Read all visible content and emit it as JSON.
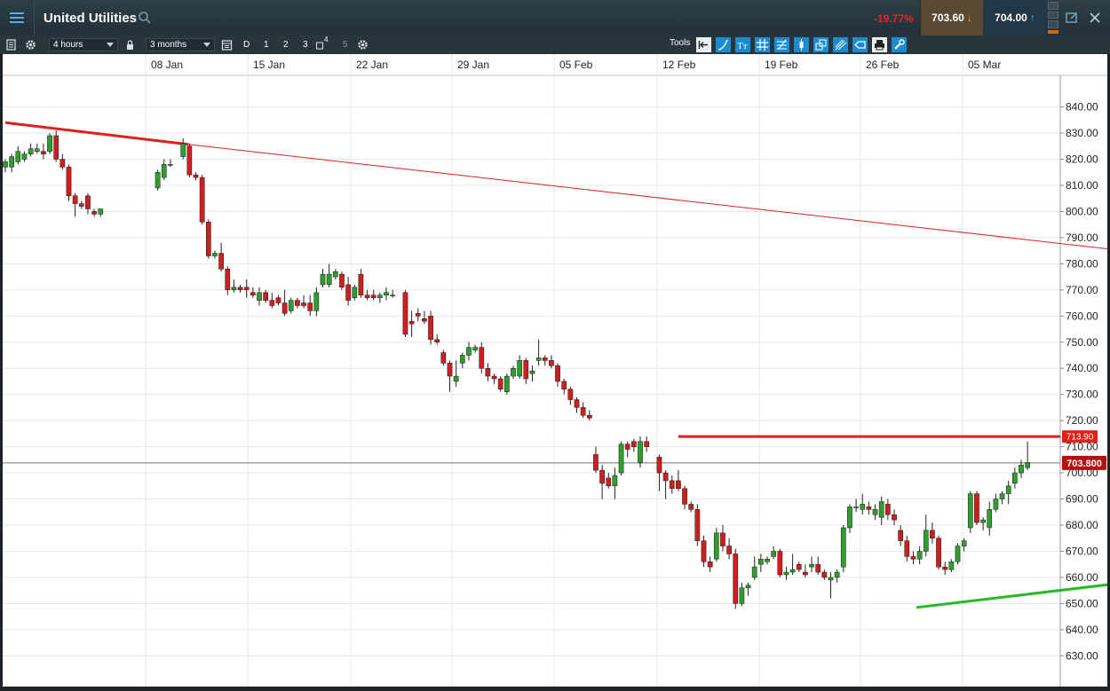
{
  "header": {
    "title": "United Utilities",
    "change": "-19.77%",
    "bid": "703.60",
    "ask": "704.00",
    "change_color": "#e02828"
  },
  "toolbar": {
    "interval": "4 hours",
    "range": "3 months",
    "period_buttons": [
      "D",
      "1",
      "2",
      "3",
      "4",
      "5"
    ],
    "tools_label": "Tools"
  },
  "icons": [
    "menu-icon",
    "search-icon",
    "settings-icon",
    "lock-icon",
    "calendar-icon",
    "popout-icon",
    "close-icon",
    "print-icon"
  ],
  "chart_data": {
    "type": "candlestick",
    "instrument": "United Utilities",
    "x_ticks": [
      "08 Jan",
      "15 Jan",
      "22 Jan",
      "29 Jan",
      "05 Feb",
      "12 Feb",
      "19 Feb",
      "26 Feb",
      "05 Mar"
    ],
    "y_ticks": [
      "840.00",
      "830.00",
      "820.00",
      "810.00",
      "800.00",
      "790.00",
      "780.00",
      "770.00",
      "760.00",
      "750.00",
      "740.00",
      "730.00",
      "720.00",
      "710.00",
      "700.00",
      "690.00",
      "680.00",
      "670.00",
      "660.00",
      "650.00",
      "640.00",
      "630.00"
    ],
    "ylim": [
      624,
      848
    ],
    "grid": true,
    "price_labels": [
      {
        "text": "713.90",
        "value": 713.9,
        "color": "#e0201d"
      },
      {
        "text": "703.800",
        "value": 703.8,
        "color": "#b81010"
      }
    ],
    "horizontal_lines": [
      {
        "value": 713.9,
        "from_x": 106,
        "color": "#e0201d",
        "style": "bold"
      },
      {
        "value": 703.8,
        "color": "#777777",
        "style": "thin"
      }
    ],
    "trendlines": [
      {
        "points": [
          [
            0,
            834
          ],
          [
            28.8,
            825.7
          ]
        ],
        "color": "#e0201d",
        "style": "bold"
      },
      {
        "points": [
          [
            28.8,
            825.7
          ],
          [
            214.5,
            774.4
          ]
        ],
        "color": "#e0201d",
        "style": "thin"
      },
      {
        "points": [
          [
            143.5,
            648.5
          ],
          [
            190.5,
            662.1
          ]
        ],
        "color": "#22bb22",
        "style": "bold"
      },
      {
        "points": [
          [
            190.5,
            662.1
          ],
          [
            214.5,
            668.3
          ]
        ],
        "color": "#22bb22",
        "style": "thin"
      }
    ],
    "up_color": "#2f9e2f",
    "down_color": "#cc1f1f",
    "candles": [
      {
        "x": 0,
        "o": 817,
        "h": 820,
        "l": 815,
        "c": 819
      },
      {
        "x": 1,
        "o": 817,
        "h": 822,
        "l": 815,
        "c": 821
      },
      {
        "x": 2,
        "o": 819,
        "h": 825,
        "l": 818,
        "c": 823
      },
      {
        "x": 3,
        "o": 820,
        "h": 823,
        "l": 819,
        "c": 822
      },
      {
        "x": 4,
        "o": 822,
        "h": 826,
        "l": 821,
        "c": 824
      },
      {
        "x": 5,
        "o": 823,
        "h": 826,
        "l": 822,
        "c": 824
      },
      {
        "x": 6,
        "o": 823,
        "h": 826,
        "l": 820,
        "c": 822
      },
      {
        "x": 7,
        "o": 823,
        "h": 830,
        "l": 822,
        "c": 829
      },
      {
        "x": 8,
        "o": 829,
        "h": 831,
        "l": 819,
        "c": 820
      },
      {
        "x": 9,
        "o": 820,
        "h": 822,
        "l": 816,
        "c": 817
      },
      {
        "x": 10,
        "o": 817,
        "h": 818,
        "l": 804,
        "c": 806
      },
      {
        "x": 11,
        "o": 806,
        "h": 807,
        "l": 798,
        "c": 803
      },
      {
        "x": 12,
        "o": 803,
        "h": 804,
        "l": 801,
        "c": 802
      },
      {
        "x": 13,
        "o": 806,
        "h": 807,
        "l": 799,
        "c": 801
      },
      {
        "x": 14,
        "o": 800,
        "h": 801,
        "l": 798,
        "c": 799
      },
      {
        "x": 15,
        "o": 799,
        "h": 801,
        "l": 798,
        "c": 801
      },
      {
        "x": 24,
        "o": 809,
        "h": 816,
        "l": 808,
        "c": 815
      },
      {
        "x": 25,
        "o": 813,
        "h": 820,
        "l": 812,
        "c": 818
      },
      {
        "x": 26,
        "o": 818,
        "h": 820,
        "l": 817,
        "c": 818
      },
      {
        "x": 28,
        "o": 821,
        "h": 828,
        "l": 820,
        "c": 826
      },
      {
        "x": 29,
        "o": 825,
        "h": 826,
        "l": 813,
        "c": 814
      },
      {
        "x": 30,
        "o": 814,
        "h": 815,
        "l": 812,
        "c": 813
      },
      {
        "x": 31,
        "o": 813,
        "h": 814,
        "l": 795,
        "c": 796
      },
      {
        "x": 32,
        "o": 796,
        "h": 797,
        "l": 782,
        "c": 783
      },
      {
        "x": 33,
        "o": 783,
        "h": 785,
        "l": 782,
        "c": 784
      },
      {
        "x": 34,
        "o": 784,
        "h": 788,
        "l": 777,
        "c": 778
      },
      {
        "x": 35,
        "o": 778,
        "h": 779,
        "l": 768,
        "c": 770
      },
      {
        "x": 36,
        "o": 770,
        "h": 774,
        "l": 769,
        "c": 771
      },
      {
        "x": 37,
        "o": 771,
        "h": 772,
        "l": 769,
        "c": 770
      },
      {
        "x": 38,
        "o": 771,
        "h": 774,
        "l": 767,
        "c": 770
      },
      {
        "x": 39,
        "o": 769,
        "h": 771,
        "l": 767,
        "c": 768
      },
      {
        "x": 40,
        "o": 766,
        "h": 771,
        "l": 764,
        "c": 769
      },
      {
        "x": 41,
        "o": 769,
        "h": 770,
        "l": 765,
        "c": 766
      },
      {
        "x": 42,
        "o": 766,
        "h": 769,
        "l": 763,
        "c": 764
      },
      {
        "x": 43,
        "o": 767,
        "h": 768,
        "l": 764,
        "c": 765
      },
      {
        "x": 44,
        "o": 765,
        "h": 770,
        "l": 760,
        "c": 761
      },
      {
        "x": 45,
        "o": 762,
        "h": 767,
        "l": 761,
        "c": 766
      },
      {
        "x": 46,
        "o": 766,
        "h": 767,
        "l": 763,
        "c": 764
      },
      {
        "x": 47,
        "o": 765,
        "h": 768,
        "l": 763,
        "c": 764
      },
      {
        "x": 48,
        "o": 765,
        "h": 768,
        "l": 760,
        "c": 762
      },
      {
        "x": 49,
        "o": 762,
        "h": 771,
        "l": 760,
        "c": 769
      },
      {
        "x": 50,
        "o": 772,
        "h": 778,
        "l": 771,
        "c": 776
      },
      {
        "x": 51,
        "o": 772,
        "h": 780,
        "l": 771,
        "c": 776
      },
      {
        "x": 52,
        "o": 775,
        "h": 778,
        "l": 774,
        "c": 777
      },
      {
        "x": 53,
        "o": 776,
        "h": 777,
        "l": 770,
        "c": 771
      },
      {
        "x": 54,
        "o": 772,
        "h": 775,
        "l": 764,
        "c": 766
      },
      {
        "x": 55,
        "o": 767,
        "h": 772,
        "l": 766,
        "c": 771
      },
      {
        "x": 56,
        "o": 776,
        "h": 778,
        "l": 767,
        "c": 768
      },
      {
        "x": 57,
        "o": 768,
        "h": 770,
        "l": 766,
        "c": 767
      },
      {
        "x": 58,
        "o": 768,
        "h": 770,
        "l": 766,
        "c": 767
      },
      {
        "x": 59,
        "o": 767,
        "h": 769,
        "l": 765,
        "c": 768
      },
      {
        "x": 60,
        "o": 768,
        "h": 771,
        "l": 766,
        "c": 769
      },
      {
        "x": 61,
        "o": 768,
        "h": 770,
        "l": 767,
        "c": 768
      },
      {
        "x": 63,
        "o": 769,
        "h": 770,
        "l": 752,
        "c": 753
      },
      {
        "x": 64,
        "o": 758,
        "h": 762,
        "l": 752,
        "c": 757
      },
      {
        "x": 65,
        "o": 761,
        "h": 763,
        "l": 758,
        "c": 760
      },
      {
        "x": 66,
        "o": 759,
        "h": 762,
        "l": 757,
        "c": 758
      },
      {
        "x": 67,
        "o": 760,
        "h": 762,
        "l": 749,
        "c": 751
      },
      {
        "x": 68,
        "o": 751,
        "h": 753,
        "l": 749,
        "c": 750
      },
      {
        "x": 69,
        "o": 746,
        "h": 747,
        "l": 741,
        "c": 742
      },
      {
        "x": 70,
        "o": 742,
        "h": 743,
        "l": 731,
        "c": 737
      },
      {
        "x": 71,
        "o": 735,
        "h": 743,
        "l": 733,
        "c": 737
      },
      {
        "x": 72,
        "o": 742,
        "h": 746,
        "l": 740,
        "c": 745
      },
      {
        "x": 73,
        "o": 745,
        "h": 750,
        "l": 743,
        "c": 748
      },
      {
        "x": 74,
        "o": 747,
        "h": 749,
        "l": 746,
        "c": 748
      },
      {
        "x": 75,
        "o": 748,
        "h": 750,
        "l": 738,
        "c": 740
      },
      {
        "x": 76,
        "o": 740,
        "h": 742,
        "l": 735,
        "c": 737
      },
      {
        "x": 77,
        "o": 737,
        "h": 738,
        "l": 734,
        "c": 736
      },
      {
        "x": 78,
        "o": 736,
        "h": 737,
        "l": 731,
        "c": 732
      },
      {
        "x": 79,
        "o": 731,
        "h": 738,
        "l": 730,
        "c": 737
      },
      {
        "x": 80,
        "o": 737,
        "h": 741,
        "l": 736,
        "c": 740
      },
      {
        "x": 81,
        "o": 737,
        "h": 745,
        "l": 736,
        "c": 743
      },
      {
        "x": 82,
        "o": 743,
        "h": 744,
        "l": 734,
        "c": 736
      },
      {
        "x": 83,
        "o": 738,
        "h": 741,
        "l": 735,
        "c": 739
      },
      {
        "x": 84,
        "o": 743,
        "h": 751,
        "l": 741,
        "c": 744
      },
      {
        "x": 85,
        "o": 744,
        "h": 745,
        "l": 741,
        "c": 743
      },
      {
        "x": 86,
        "o": 743,
        "h": 745,
        "l": 740,
        "c": 741
      },
      {
        "x": 87,
        "o": 741,
        "h": 742,
        "l": 733,
        "c": 735
      },
      {
        "x": 88,
        "o": 735,
        "h": 736,
        "l": 730,
        "c": 732
      },
      {
        "x": 89,
        "o": 732,
        "h": 733,
        "l": 726,
        "c": 728
      },
      {
        "x": 90,
        "o": 728,
        "h": 729,
        "l": 723,
        "c": 725
      },
      {
        "x": 91,
        "o": 725,
        "h": 727,
        "l": 721,
        "c": 722
      },
      {
        "x": 92,
        "o": 722,
        "h": 724,
        "l": 720,
        "c": 721
      },
      {
        "x": 93,
        "o": 707,
        "h": 710,
        "l": 700,
        "c": 701
      },
      {
        "x": 94,
        "o": 701,
        "h": 703,
        "l": 690,
        "c": 696
      },
      {
        "x": 95,
        "o": 698,
        "h": 700,
        "l": 694,
        "c": 695
      },
      {
        "x": 96,
        "o": 695,
        "h": 702,
        "l": 690,
        "c": 699
      },
      {
        "x": 97,
        "o": 700,
        "h": 712,
        "l": 699,
        "c": 711
      },
      {
        "x": 98,
        "o": 711,
        "h": 712,
        "l": 706,
        "c": 709
      },
      {
        "x": 99,
        "o": 712,
        "h": 713,
        "l": 708,
        "c": 710
      },
      {
        "x": 100,
        "o": 704,
        "h": 714,
        "l": 702,
        "c": 712
      },
      {
        "x": 101,
        "o": 712,
        "h": 714,
        "l": 708,
        "c": 710
      },
      {
        "x": 103,
        "o": 706,
        "h": 707,
        "l": 693,
        "c": 700
      },
      {
        "x": 104,
        "o": 700,
        "h": 701,
        "l": 690,
        "c": 697
      },
      {
        "x": 105,
        "o": 697,
        "h": 699,
        "l": 692,
        "c": 694
      },
      {
        "x": 106,
        "o": 697,
        "h": 701,
        "l": 693,
        "c": 694
      },
      {
        "x": 107,
        "o": 694,
        "h": 695,
        "l": 686,
        "c": 688
      },
      {
        "x": 108,
        "o": 688,
        "h": 689,
        "l": 685,
        "c": 686
      },
      {
        "x": 109,
        "o": 686,
        "h": 688,
        "l": 672,
        "c": 674
      },
      {
        "x": 110,
        "o": 674,
        "h": 676,
        "l": 664,
        "c": 666
      },
      {
        "x": 111,
        "o": 666,
        "h": 668,
        "l": 662,
        "c": 664
      },
      {
        "x": 112,
        "o": 667,
        "h": 679,
        "l": 666,
        "c": 677
      },
      {
        "x": 113,
        "o": 677,
        "h": 680,
        "l": 670,
        "c": 672
      },
      {
        "x": 114,
        "o": 672,
        "h": 675,
        "l": 667,
        "c": 669
      },
      {
        "x": 115,
        "o": 669,
        "h": 671,
        "l": 648,
        "c": 650
      },
      {
        "x": 116,
        "o": 650,
        "h": 658,
        "l": 649,
        "c": 656
      },
      {
        "x": 117,
        "o": 656,
        "h": 658,
        "l": 653,
        "c": 657
      },
      {
        "x": 118,
        "o": 660,
        "h": 668,
        "l": 659,
        "c": 664
      },
      {
        "x": 119,
        "o": 665,
        "h": 669,
        "l": 662,
        "c": 667
      },
      {
        "x": 120,
        "o": 666,
        "h": 668,
        "l": 665,
        "c": 667
      },
      {
        "x": 121,
        "o": 668,
        "h": 672,
        "l": 667,
        "c": 670
      },
      {
        "x": 122,
        "o": 670,
        "h": 671,
        "l": 660,
        "c": 661
      },
      {
        "x": 123,
        "o": 661,
        "h": 664,
        "l": 659,
        "c": 662
      },
      {
        "x": 124,
        "o": 662,
        "h": 669,
        "l": 661,
        "c": 663
      },
      {
        "x": 125,
        "o": 665,
        "h": 666,
        "l": 662,
        "c": 663
      },
      {
        "x": 126,
        "o": 662,
        "h": 665,
        "l": 660,
        "c": 661
      },
      {
        "x": 127,
        "o": 664,
        "h": 668,
        "l": 662,
        "c": 665
      },
      {
        "x": 128,
        "o": 665,
        "h": 668,
        "l": 661,
        "c": 662
      },
      {
        "x": 129,
        "o": 662,
        "h": 663,
        "l": 659,
        "c": 660
      },
      {
        "x": 130,
        "o": 659,
        "h": 662,
        "l": 652,
        "c": 660
      },
      {
        "x": 131,
        "o": 660,
        "h": 663,
        "l": 658,
        "c": 662
      },
      {
        "x": 132,
        "o": 664,
        "h": 680,
        "l": 662,
        "c": 679
      },
      {
        "x": 133,
        "o": 679,
        "h": 688,
        "l": 677,
        "c": 687
      },
      {
        "x": 134,
        "o": 687,
        "h": 690,
        "l": 685,
        "c": 687
      },
      {
        "x": 135,
        "o": 686,
        "h": 692,
        "l": 684,
        "c": 688
      },
      {
        "x": 136,
        "o": 687,
        "h": 689,
        "l": 684,
        "c": 686
      },
      {
        "x": 137,
        "o": 684,
        "h": 688,
        "l": 682,
        "c": 686
      },
      {
        "x": 138,
        "o": 683,
        "h": 691,
        "l": 680,
        "c": 689
      },
      {
        "x": 139,
        "o": 688,
        "h": 690,
        "l": 682,
        "c": 684
      },
      {
        "x": 140,
        "o": 684,
        "h": 686,
        "l": 680,
        "c": 682
      },
      {
        "x": 141,
        "o": 678,
        "h": 680,
        "l": 672,
        "c": 674
      },
      {
        "x": 142,
        "o": 674,
        "h": 676,
        "l": 666,
        "c": 668
      },
      {
        "x": 143,
        "o": 668,
        "h": 670,
        "l": 665,
        "c": 667
      },
      {
        "x": 144,
        "o": 667,
        "h": 672,
        "l": 665,
        "c": 670
      },
      {
        "x": 145,
        "o": 670,
        "h": 684,
        "l": 668,
        "c": 678
      },
      {
        "x": 146,
        "o": 678,
        "h": 681,
        "l": 673,
        "c": 675
      },
      {
        "x": 147,
        "o": 675,
        "h": 676,
        "l": 663,
        "c": 664
      },
      {
        "x": 148,
        "o": 664,
        "h": 666,
        "l": 661,
        "c": 663
      },
      {
        "x": 149,
        "o": 663,
        "h": 667,
        "l": 662,
        "c": 666
      },
      {
        "x": 150,
        "o": 666,
        "h": 673,
        "l": 665,
        "c": 672
      },
      {
        "x": 151,
        "o": 672,
        "h": 675,
        "l": 670,
        "c": 674
      },
      {
        "x": 152,
        "o": 679,
        "h": 693,
        "l": 677,
        "c": 692
      },
      {
        "x": 153,
        "o": 692,
        "h": 693,
        "l": 680,
        "c": 681
      },
      {
        "x": 154,
        "o": 681,
        "h": 683,
        "l": 678,
        "c": 682
      },
      {
        "x": 155,
        "o": 679,
        "h": 689,
        "l": 676,
        "c": 686
      },
      {
        "x": 156,
        "o": 686,
        "h": 692,
        "l": 685,
        "c": 690
      },
      {
        "x": 157,
        "o": 690,
        "h": 693,
        "l": 688,
        "c": 692
      },
      {
        "x": 158,
        "o": 692,
        "h": 697,
        "l": 688,
        "c": 695
      },
      {
        "x": 159,
        "o": 696,
        "h": 702,
        "l": 694,
        "c": 700
      },
      {
        "x": 160,
        "o": 700,
        "h": 705,
        "l": 698,
        "c": 703
      },
      {
        "x": 161,
        "o": 702,
        "h": 712,
        "l": 701,
        "c": 704
      }
    ]
  }
}
